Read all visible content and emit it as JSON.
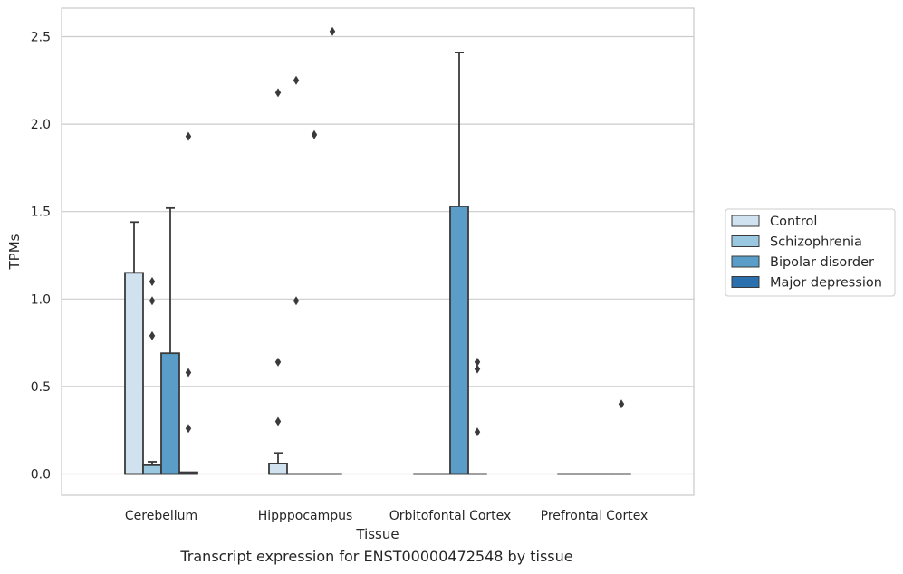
{
  "caption": "Transcript expression for ENST00000472548 by tissue",
  "chart_data": {
    "type": "box",
    "xlabel": "Tissue",
    "ylabel": "TPMs",
    "ylim": [
      -0.12,
      2.66
    ],
    "yticks": [
      0.0,
      0.5,
      1.0,
      1.5,
      2.0,
      2.5
    ],
    "grid": "horizontal",
    "legend_position": "right",
    "categories": [
      "Cerebellum",
      "Hipppocampus",
      "Orbitofontal Cortex",
      "Prefrontal Cortex"
    ],
    "series": [
      {
        "name": "Control",
        "color": "#d0e1f0",
        "boxes": [
          {
            "category": "Cerebellum",
            "q1": 0.0,
            "median": 0.0,
            "q3": 1.15,
            "whisker_low": 0.0,
            "whisker_high": 1.44,
            "outliers": []
          },
          {
            "category": "Hipppocampus",
            "q1": 0.0,
            "median": 0.0,
            "q3": 0.06,
            "whisker_low": 0.0,
            "whisker_high": 0.12,
            "outliers": [
              0.3,
              0.64,
              2.18
            ]
          },
          {
            "category": "Orbitofontal Cortex",
            "q1": 0.0,
            "median": 0.0,
            "q3": 0.0,
            "whisker_low": 0.0,
            "whisker_high": 0.0,
            "outliers": []
          },
          {
            "category": "Prefrontal Cortex",
            "q1": 0.0,
            "median": 0.0,
            "q3": 0.0,
            "whisker_low": 0.0,
            "whisker_high": 0.0,
            "outliers": []
          }
        ]
      },
      {
        "name": "Schizophrenia",
        "color": "#9ac8e0",
        "boxes": [
          {
            "category": "Cerebellum",
            "q1": 0.0,
            "median": 0.0,
            "q3": 0.05,
            "whisker_low": 0.0,
            "whisker_high": 0.07,
            "outliers": [
              0.79,
              0.99,
              1.1
            ]
          },
          {
            "category": "Hipppocampus",
            "q1": 0.0,
            "median": 0.0,
            "q3": 0.0,
            "whisker_low": 0.0,
            "whisker_high": 0.0,
            "outliers": [
              0.99,
              2.25
            ]
          },
          {
            "category": "Orbitofontal Cortex",
            "q1": 0.0,
            "median": 0.0,
            "q3": 0.0,
            "whisker_low": 0.0,
            "whisker_high": 0.0,
            "outliers": []
          },
          {
            "category": "Prefrontal Cortex",
            "q1": 0.0,
            "median": 0.0,
            "q3": 0.0,
            "whisker_low": 0.0,
            "whisker_high": 0.0,
            "outliers": []
          }
        ]
      },
      {
        "name": "Bipolar disorder",
        "color": "#5a9dc8",
        "boxes": [
          {
            "category": "Cerebellum",
            "q1": 0.0,
            "median": 0.0,
            "q3": 0.69,
            "whisker_low": 0.0,
            "whisker_high": 1.52,
            "outliers": []
          },
          {
            "category": "Hipppocampus",
            "q1": 0.0,
            "median": 0.0,
            "q3": 0.0,
            "whisker_low": 0.0,
            "whisker_high": 0.0,
            "outliers": [
              1.94
            ]
          },
          {
            "category": "Orbitofontal Cortex",
            "q1": 0.0,
            "median": 0.0,
            "q3": 1.53,
            "whisker_low": 0.0,
            "whisker_high": 2.41,
            "outliers": []
          },
          {
            "category": "Prefrontal Cortex",
            "q1": 0.0,
            "median": 0.0,
            "q3": 0.0,
            "whisker_low": 0.0,
            "whisker_high": 0.0,
            "outliers": []
          }
        ]
      },
      {
        "name": "Major depression",
        "color": "#2a6fae",
        "boxes": [
          {
            "category": "Cerebellum",
            "q1": 0.0,
            "median": 0.0,
            "q3": 0.01,
            "whisker_low": 0.0,
            "whisker_high": 0.01,
            "outliers": [
              0.26,
              0.58,
              1.93
            ]
          },
          {
            "category": "Hipppocampus",
            "q1": 0.0,
            "median": 0.0,
            "q3": 0.0,
            "whisker_low": 0.0,
            "whisker_high": 0.0,
            "outliers": [
              2.53
            ]
          },
          {
            "category": "Orbitofontal Cortex",
            "q1": 0.0,
            "median": 0.0,
            "q3": 0.0,
            "whisker_low": 0.0,
            "whisker_high": 0.0,
            "outliers": [
              0.24,
              0.6,
              0.64
            ]
          },
          {
            "category": "Prefrontal Cortex",
            "q1": 0.0,
            "median": 0.0,
            "q3": 0.0,
            "whisker_low": 0.0,
            "whisker_high": 0.0,
            "outliers": [
              0.4
            ]
          }
        ]
      }
    ]
  }
}
